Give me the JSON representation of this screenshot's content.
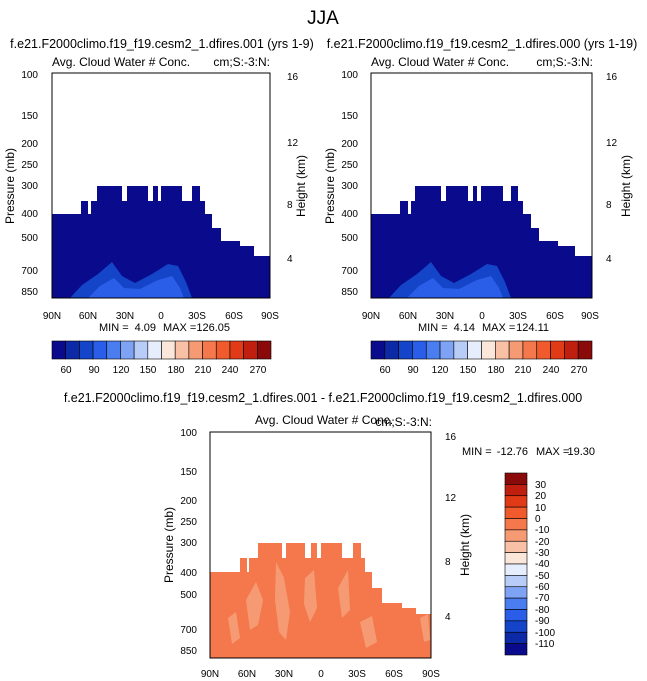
{
  "page_title": "JJA",
  "palette": {
    "levels": [
      "#0a0a8c",
      "#0d2aa6",
      "#1444c8",
      "#2a5ee8",
      "#4a7ef0",
      "#7ea2f4",
      "#b8ccf8",
      "#e6edfc",
      "#fbe6da",
      "#f8c0a4",
      "#f69a74",
      "#f4784c",
      "#f05a2c",
      "#e03a16",
      "#c01e0e",
      "#8a0a0a"
    ]
  },
  "chart_data": [
    {
      "type": "contour",
      "case_label": "f.e21.F2000climo.f19_f19.cesm2_1.dfires.001 (yrs 1-9)",
      "title": "Avg. Cloud Water # Conc.",
      "units": "cm;S:-3:N:",
      "ylabel": "Pressure (mb)",
      "y2label": "Height (km)",
      "x_ticks": [
        "90N",
        "60N",
        "30N",
        "0",
        "30S",
        "60S",
        "90S"
      ],
      "y_ticks": [
        "100",
        "150",
        "200",
        "250",
        "300",
        "400",
        "500",
        "700",
        "850"
      ],
      "y2_ticks": [
        "16",
        "12",
        "8",
        "4"
      ],
      "stats": {
        "min_label": "MIN =",
        "min": "4.09",
        "max_label": "MAX =",
        "max": "126.05"
      },
      "colorbar_labels": [
        "60",
        "90",
        "120",
        "150",
        "180",
        "210",
        "240",
        "270"
      ]
    },
    {
      "type": "contour",
      "case_label": "f.e21.F2000climo.f19_f19.cesm2_1.dfires.000 (yrs 1-19)",
      "title": "Avg. Cloud Water # Conc.",
      "units": "cm;S:-3:N:",
      "ylabel": "Pressure (mb)",
      "y2label": "Height (km)",
      "x_ticks": [
        "90N",
        "60N",
        "30N",
        "0",
        "30S",
        "60S",
        "90S"
      ],
      "y_ticks": [
        "100",
        "150",
        "200",
        "250",
        "300",
        "400",
        "500",
        "700",
        "850"
      ],
      "y2_ticks": [
        "16",
        "12",
        "8",
        "4"
      ],
      "stats": {
        "min_label": "MIN =",
        "min": "4.14",
        "max_label": "MAX =",
        "max": "124.11"
      },
      "colorbar_labels": [
        "60",
        "90",
        "120",
        "150",
        "180",
        "210",
        "240",
        "270"
      ]
    },
    {
      "type": "contour",
      "case_label": "f.e21.F2000climo.f19_f19.cesm2_1.dfires.001 - f.e21.F2000climo.f19_f19.cesm2_1.dfires.000",
      "title": "Avg. Cloud Water # Conc.",
      "units": "cm;S:-3:N:",
      "ylabel": "Pressure (mb)",
      "y2label": "Height (km)",
      "x_ticks": [
        "90N",
        "60N",
        "30N",
        "0",
        "30S",
        "60S",
        "90S"
      ],
      "y_ticks": [
        "100",
        "150",
        "200",
        "250",
        "300",
        "400",
        "500",
        "700",
        "850"
      ],
      "y2_ticks": [
        "16",
        "12",
        "8",
        "4"
      ],
      "stats": {
        "min_label": "MIN =",
        "min": "-12.76",
        "max_label": "MAX =",
        "max": "19.30"
      },
      "colorbar_labels": [
        "30",
        "20",
        "10",
        "0",
        "-10",
        "-20",
        "-30",
        "-40",
        "-50",
        "-60",
        "-70",
        "-80",
        "-90",
        "-100",
        "-110"
      ]
    }
  ]
}
